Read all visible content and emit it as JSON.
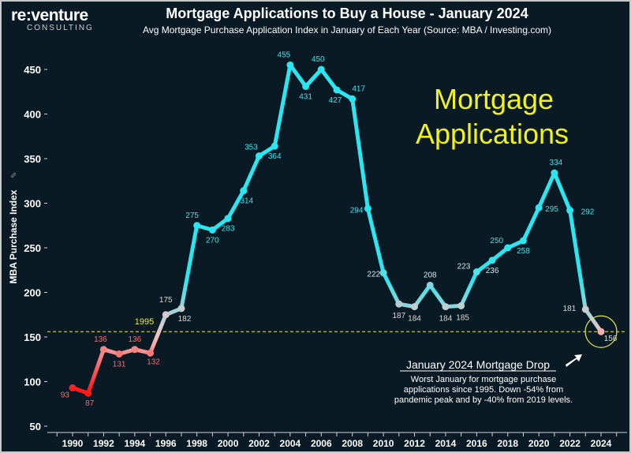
{
  "brand": {
    "name": "re:venture",
    "sub": "CONSULTING"
  },
  "chart_data": {
    "type": "line",
    "title": "Mortgage Applications to Buy a House - January 2024",
    "subtitle": "Avg Mortgage Purchase Application Index in January of Each Year (Source: MBA / Investing.com)",
    "ylabel": "MBA Purchase Index",
    "xlabel": "",
    "ylim": [
      50,
      470
    ],
    "y_ticks": [
      50,
      100,
      150,
      200,
      250,
      300,
      350,
      400,
      450
    ],
    "x_ticks": [
      1990,
      1992,
      1994,
      1996,
      1998,
      2000,
      2002,
      2004,
      2006,
      2008,
      2010,
      2012,
      2014,
      2016,
      2018,
      2020,
      2022,
      2024
    ],
    "grid": false,
    "x": [
      1990,
      1991,
      1992,
      1993,
      1994,
      1995,
      1996,
      1997,
      1998,
      1999,
      2000,
      2001,
      2002,
      2003,
      2004,
      2005,
      2006,
      2007,
      2008,
      2009,
      2010,
      2011,
      2012,
      2013,
      2014,
      2015,
      2016,
      2017,
      2018,
      2019,
      2020,
      2021,
      2022,
      2023,
      2024
    ],
    "values": [
      93,
      87,
      136,
      131,
      136,
      132,
      175,
      182,
      275,
      270,
      283,
      314,
      353,
      364,
      455,
      431,
      450,
      427,
      417,
      294,
      222,
      187,
      184,
      208,
      184,
      185,
      223,
      236,
      250,
      258,
      295,
      334,
      292,
      181,
      156
    ],
    "reference_line": {
      "value": 156,
      "label": "1995"
    },
    "overlay_text": [
      "Mortgage",
      "Applications"
    ],
    "annotation": {
      "heading": "January 2024 Mortgage Drop",
      "lines": [
        "Worst January for mortgage purchase",
        "applications since 1995. Down -54% from",
        "pandemic peak and by -40% from 2019 levels."
      ]
    },
    "colors": {
      "low": "#ff1a1a",
      "mid": "#f2c6c6",
      "high": "#29e6f0",
      "reference": "#e8e84a",
      "overlay": "#f2f21a"
    }
  }
}
